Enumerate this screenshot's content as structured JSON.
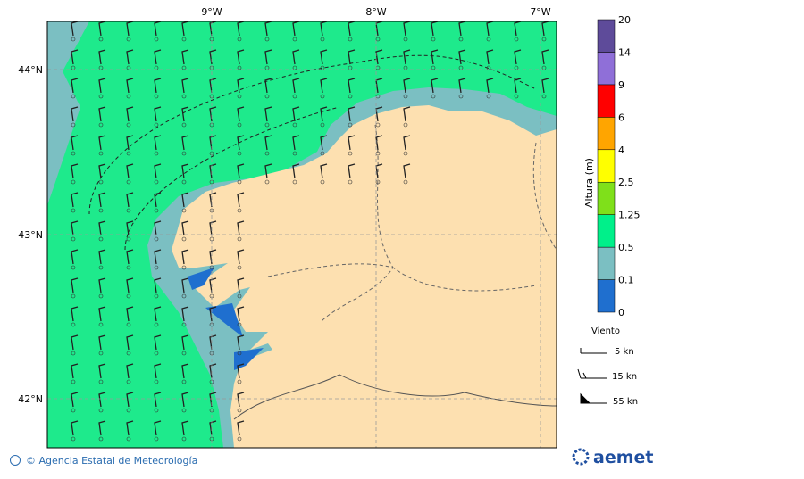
{
  "map": {
    "lon_labels": [
      "9°W",
      "8°W",
      "7°W"
    ],
    "lat_labels": [
      "44°N",
      "43°N",
      "42°N"
    ]
  },
  "colorbar": {
    "title": "Altura (m)",
    "levels": [
      "0",
      "0.1",
      "0.5",
      "1.25",
      "2.5",
      "4",
      "6",
      "9",
      "14",
      "20"
    ],
    "colors": [
      "#1f6fcf",
      "#7bbfc2",
      "#00f08a",
      "#7fe01a",
      "#ffff00",
      "#ffa500",
      "#ff0000",
      "#8f6fd8",
      "#5e4b9a"
    ]
  },
  "wind_legend": {
    "title": "Viento",
    "items": [
      "5 kn",
      "15 kn",
      "55 kn"
    ]
  },
  "footer": {
    "credit": "© Agencia Estatal de Meteorología",
    "logo": "aemet"
  }
}
